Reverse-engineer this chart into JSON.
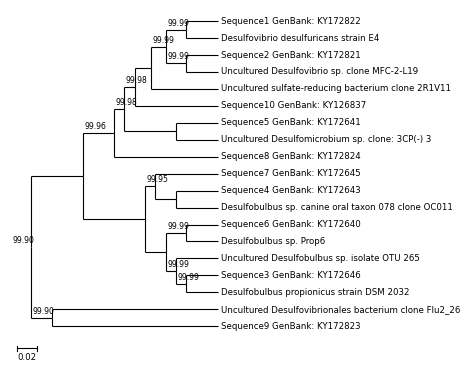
{
  "scale_bar_label": "0.02",
  "taxa": [
    "Sequence1 GenBank: KY172822",
    "Desulfovibrio desulfuricans strain E4",
    "Sequence2 GenBank: KY172821",
    "Uncultured Desulfovibrio sp. clone MFC-2-L19",
    "Uncultured sulfate-reducing bacterium clone 2R1V11",
    "Sequence10 GenBank: KY126837",
    "Sequence5 GenBank: KY172641",
    "Uncultured Desulfomicrobium sp. clone: 3CP(-) 3",
    "Sequence8 GenBank: KY172824",
    "Sequence7 GenBank: KY172645",
    "Sequence4 GenBank: KY172643",
    "Desulfobulbus sp. canine oral taxon 078 clone OC011",
    "Sequence6 GenBank: KY172640",
    "Desulfobulbus sp. Prop6",
    "Uncultured Desulfobulbus sp. isolate OTU 265",
    "Sequence3 GenBank: KY172646",
    "Desulfobulbus propionicus strain DSM 2032",
    "Uncultured Desulfovibrionales bacterium clone Flu2_26",
    "Sequence9 GenBank: KY172823"
  ],
  "background_color": "#ffffff",
  "line_color": "#000000",
  "text_color": "#000000",
  "font_size": 6.2,
  "bootstrap_font_size": 5.5,
  "lw": 0.8
}
